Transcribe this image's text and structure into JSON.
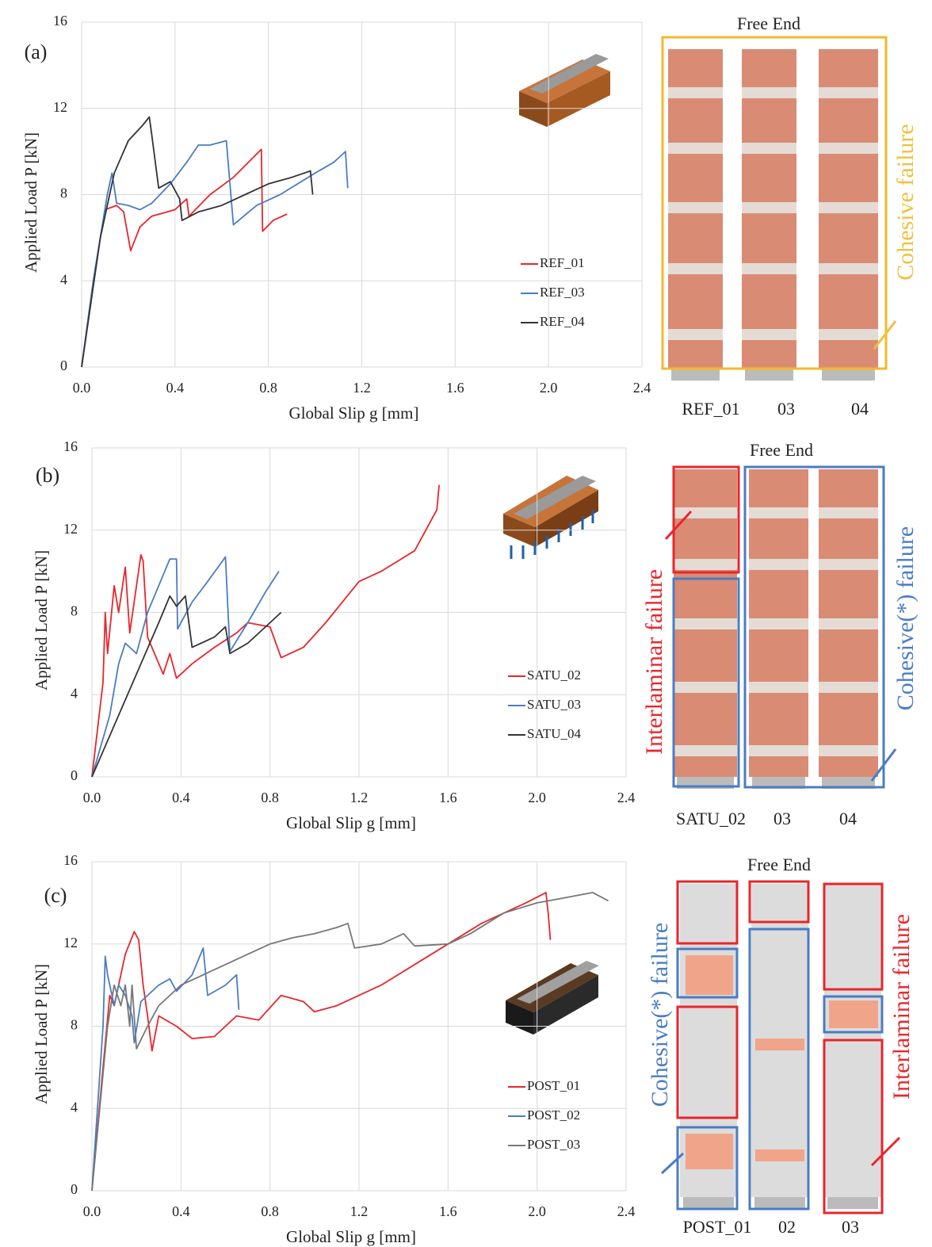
{
  "chart_data": [
    {
      "type": "line",
      "panel_label": "(a)",
      "x_label": "Global Slip g [mm]",
      "y_label": "Applied Load P [kN]",
      "xlim": [
        0,
        2.4
      ],
      "xticks": [
        {
          "value": 0,
          "label": "0.0"
        },
        0.4,
        0.8,
        1.2,
        1.6,
        {
          "value": 2,
          "label": "2.0"
        },
        2.4
      ],
      "ylim": [
        0,
        16
      ],
      "yticks": [
        0,
        4,
        8,
        12,
        16
      ],
      "grid": true,
      "legend": "center right",
      "series": [
        {
          "name": "REF_01",
          "color": "#e8262b",
          "x": [
            0,
            0.05,
            0.1,
            0.15,
            0.18,
            0.21,
            0.25,
            0.3,
            0.4,
            0.45,
            0.46,
            0.55,
            0.65,
            0.77,
            0.775,
            0.82,
            0.88
          ],
          "values": [
            0,
            4,
            7.3,
            7.5,
            7.2,
            5.4,
            6.5,
            7.0,
            7.3,
            7.8,
            7.0,
            8.0,
            8.8,
            10.1,
            6.3,
            6.8,
            7.1
          ]
        },
        {
          "name": "REF_03",
          "color": "#4a7cc4",
          "x": [
            0,
            0.05,
            0.11,
            0.13,
            0.15,
            0.2,
            0.25,
            0.3,
            0.38,
            0.45,
            0.5,
            0.55,
            0.62,
            0.65,
            0.75,
            0.85,
            1.0,
            1.08,
            1.13,
            1.14
          ],
          "values": [
            0,
            4,
            8,
            9,
            7.6,
            7.5,
            7.3,
            7.6,
            8.5,
            9.5,
            10.3,
            10.3,
            10.5,
            6.6,
            7.5,
            8.0,
            9.0,
            9.5,
            10.0,
            8.3
          ]
        },
        {
          "name": "REF_04",
          "color": "#333333",
          "x": [
            0,
            0.08,
            0.14,
            0.2,
            0.26,
            0.29,
            0.3,
            0.33,
            0.38,
            0.42,
            0.43,
            0.5,
            0.6,
            0.7,
            0.8,
            0.9,
            0.98,
            0.99
          ],
          "values": [
            0,
            6,
            9,
            10.5,
            11.2,
            11.6,
            10.8,
            8.3,
            8.6,
            7.8,
            6.8,
            7.2,
            7.5,
            8.0,
            8.5,
            8.8,
            9.1,
            8.0
          ]
        }
      ]
    },
    {
      "type": "line",
      "panel_label": "(b)",
      "x_label": "Global Slip g [mm]",
      "y_label": "Applied Load P [kN]",
      "xlim": [
        0,
        2.4
      ],
      "xticks": [
        {
          "value": 0,
          "label": "0.0"
        },
        0.4,
        0.8,
        1.2,
        1.6,
        {
          "value": 2,
          "label": "2.0"
        },
        2.4
      ],
      "ylim": [
        0,
        16
      ],
      "yticks": [
        0,
        4,
        8,
        12,
        16
      ],
      "grid": true,
      "legend": "center right",
      "series": [
        {
          "name": "SATU_02",
          "color": "#e8262b",
          "x": [
            0,
            0.05,
            0.06,
            0.07,
            0.1,
            0.12,
            0.15,
            0.17,
            0.22,
            0.23,
            0.25,
            0.32,
            0.35,
            0.38,
            0.45,
            0.55,
            0.65,
            0.7,
            0.8,
            0.85,
            0.95,
            1.05,
            1.2,
            1.3,
            1.45,
            1.5,
            1.55,
            1.56
          ],
          "values": [
            0,
            4.6,
            8,
            6,
            9.3,
            8,
            10.2,
            7.0,
            10.8,
            10.5,
            6.8,
            5,
            6,
            4.8,
            5.5,
            6.3,
            7.0,
            7.5,
            7.3,
            5.8,
            6.3,
            7.5,
            9.5,
            10.0,
            11.0,
            12.0,
            13.0,
            14.2
          ]
        },
        {
          "name": "SATU_03",
          "color": "#4a7cc4",
          "x": [
            0,
            0.08,
            0.12,
            0.15,
            0.2,
            0.25,
            0.3,
            0.35,
            0.38,
            0.385,
            0.45,
            0.52,
            0.6,
            0.62,
            0.7,
            0.78,
            0.84
          ],
          "values": [
            0,
            3,
            5.5,
            6.5,
            6,
            8.0,
            9.3,
            10.6,
            10.6,
            7.2,
            8.5,
            9.5,
            10.7,
            6.1,
            7.5,
            9.0,
            10.0
          ]
        },
        {
          "name": "SATU_04",
          "color": "#333333",
          "x": [
            0,
            0.1,
            0.2,
            0.3,
            0.35,
            0.38,
            0.42,
            0.45,
            0.55,
            0.6,
            0.62,
            0.7,
            0.8,
            0.85
          ],
          "values": [
            0,
            2.5,
            5,
            7.5,
            8.8,
            8.3,
            8.8,
            6.3,
            6.8,
            7.3,
            6.0,
            6.5,
            7.5,
            8.0
          ]
        }
      ]
    },
    {
      "type": "line",
      "panel_label": "(c)",
      "x_label": "Global Slip g [mm]",
      "y_label": "Applied Load P [kN]",
      "xlim": [
        0,
        2.4
      ],
      "xticks": [
        {
          "value": 0,
          "label": "0.0"
        },
        0.4,
        0.8,
        1.2,
        1.6,
        {
          "value": 2,
          "label": "2.0"
        },
        2.4
      ],
      "ylim": [
        0,
        16
      ],
      "yticks": [
        0,
        4,
        8,
        12,
        16
      ],
      "grid": true,
      "legend": "center right",
      "series": [
        {
          "name": "POST_01",
          "color": "#e8262b",
          "x": [
            0,
            0.05,
            0.08,
            0.1,
            0.12,
            0.15,
            0.19,
            0.21,
            0.23,
            0.25,
            0.27,
            0.3,
            0.38,
            0.45,
            0.55,
            0.65,
            0.75,
            0.85,
            0.95,
            1.0,
            1.1,
            1.3,
            1.45,
            1.6,
            1.75,
            1.95,
            2.04,
            2.05,
            2.06
          ],
          "values": [
            0,
            6,
            9.5,
            9,
            10,
            11.5,
            12.6,
            12.2,
            10,
            8.5,
            6.8,
            8.5,
            8.0,
            7.4,
            7.5,
            8.5,
            8.3,
            9.5,
            9.2,
            8.7,
            9.0,
            10.0,
            11.0,
            12.0,
            13.0,
            14.0,
            14.5,
            13.5,
            12.2
          ]
        },
        {
          "name": "POST_02",
          "color": "#4a7cc4",
          "x": [
            0,
            0.05,
            0.06,
            0.07,
            0.1,
            0.12,
            0.15,
            0.18,
            0.19,
            0.22,
            0.3,
            0.35,
            0.38,
            0.45,
            0.5,
            0.52,
            0.6,
            0.65,
            0.66
          ],
          "values": [
            0,
            8,
            11.4,
            10.5,
            9,
            10,
            9.5,
            8.5,
            7.2,
            9.2,
            10,
            10.3,
            9.7,
            10.5,
            11.8,
            9.5,
            10.0,
            10.5,
            8.8
          ]
        },
        {
          "name": "POST_03",
          "color": "#777777",
          "x": [
            0,
            0.07,
            0.1,
            0.13,
            0.15,
            0.17,
            0.18,
            0.2,
            0.25,
            0.3,
            0.4,
            0.5,
            0.6,
            0.7,
            0.8,
            0.9,
            1.0,
            1.1,
            1.15,
            1.18,
            1.3,
            1.4,
            1.45,
            1.6,
            1.7,
            1.85,
            2.0,
            2.1,
            2.25,
            2.32
          ],
          "values": [
            0,
            8,
            10,
            9,
            10,
            8,
            10,
            6.9,
            8,
            9,
            10,
            10.5,
            11,
            11.5,
            12,
            12.3,
            12.5,
            12.8,
            13.0,
            11.8,
            12.0,
            12.5,
            11.9,
            12.0,
            12.5,
            13.5,
            14.0,
            14.2,
            14.5,
            14.1
          ]
        }
      ]
    }
  ],
  "photo_panels": [
    {
      "title": "Free End",
      "specimens": [
        "REF_01",
        "03",
        "04"
      ],
      "annotations": [
        "Cohesive  failure"
      ]
    },
    {
      "title": "Free End",
      "specimens": [
        "SATU_02",
        "03",
        "04"
      ],
      "annotations": [
        "Interlaminar failure",
        "Cohesive(*)  failure"
      ]
    },
    {
      "title": "Free End",
      "specimens": [
        "POST_01",
        "02",
        "03"
      ],
      "annotations": [
        "Cohesive(*)  failure",
        "Interlaminar failure"
      ]
    }
  ]
}
